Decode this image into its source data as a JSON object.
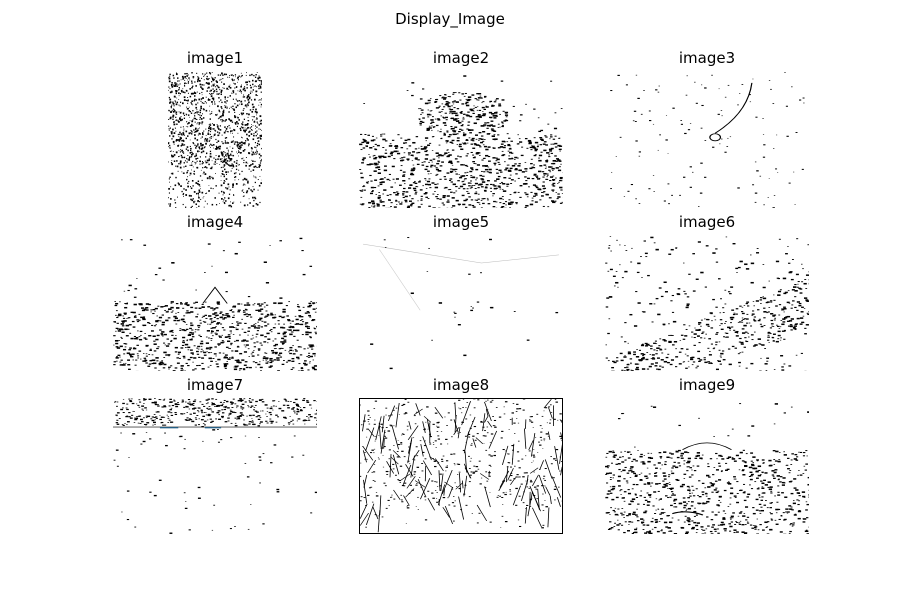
{
  "figure": {
    "title": "Display_Image"
  },
  "panels": [
    {
      "title": "image1"
    },
    {
      "title": "image2"
    },
    {
      "title": "image3"
    },
    {
      "title": "image4"
    },
    {
      "title": "image5"
    },
    {
      "title": "image6"
    },
    {
      "title": "image7"
    },
    {
      "title": "image8"
    },
    {
      "title": "image9"
    }
  ]
}
